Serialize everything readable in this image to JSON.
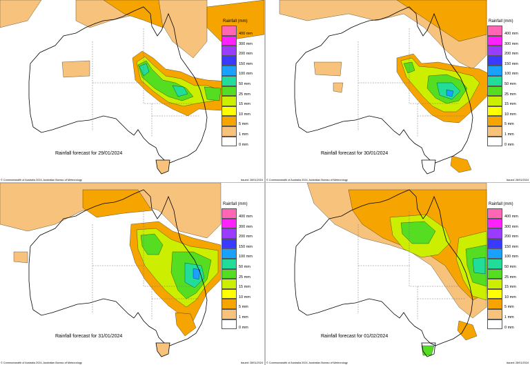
{
  "legend": {
    "title": "Rainfall (mm)",
    "classes": [
      {
        "label": "400 mm",
        "color": "#ff66b3"
      },
      {
        "label": "300 mm",
        "color": "#ff22ff"
      },
      {
        "label": "200 mm",
        "color": "#9a3cff"
      },
      {
        "label": "150 mm",
        "color": "#3a3aff"
      },
      {
        "label": "100 mm",
        "color": "#1aa0ff"
      },
      {
        "label": "50 mm",
        "color": "#22dd99"
      },
      {
        "label": "25 mm",
        "color": "#55dd22"
      },
      {
        "label": "15 mm",
        "color": "#ccee00"
      },
      {
        "label": "10 mm",
        "color": "#ffff00"
      },
      {
        "label": "5 mm",
        "color": "#f6a400"
      },
      {
        "label": "1 mm",
        "color": "#f7c27c"
      },
      {
        "label": "0 mm",
        "color": "#ffffff"
      }
    ]
  },
  "panels": [
    {
      "caption": "Rainfall forecast for 29/01/2024",
      "credit": "© Commonwealth of Australia 2024, Australian Bureau of Meteorology",
      "issued": "Issued: 28/01/2024"
    },
    {
      "caption": "Rainfall forecast for 30/01/2024",
      "credit": "© Commonwealth of Australia 2024, Australian Bureau of Meteorology",
      "issued": "Issued: 28/01/2024"
    },
    {
      "caption": "Rainfall forecast for 31/01/2024",
      "credit": "© Commonwealth of Australia 2024, Australian Bureau of Meteorology",
      "issued": "Issued: 28/01/2024"
    },
    {
      "caption": "Rainfall forecast for 01/02/2024",
      "credit": "© Commonwealth of Australia 2024, Australian Bureau of Meteorology",
      "issued": "Issued: 28/01/2024"
    }
  ],
  "colors": {
    "coast": "#000000",
    "borders": "#777777",
    "rain_1mm": "#f7c27c",
    "rain_5mm": "#f6a400",
    "rain_10mm": "#ffff00",
    "rain_15mm": "#ccee00",
    "rain_25mm": "#55dd22",
    "rain_50mm": "#22dd99",
    "rain_100mm": "#1aa0ff"
  }
}
